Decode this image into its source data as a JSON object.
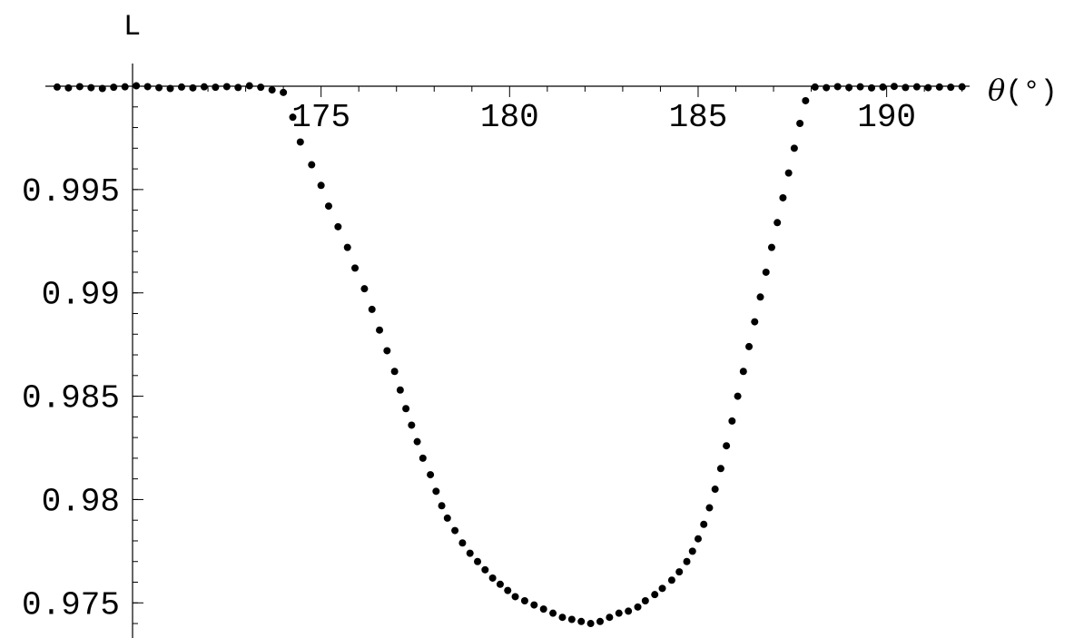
{
  "chart_data": {
    "type": "scatter",
    "title": "",
    "xlabel": "θ(°)",
    "xlabel_symbol": "θ",
    "xlabel_unit": "(°)",
    "ylabel": "L",
    "xlim": [
      170,
      192.2
    ],
    "ylim": [
      0.9733,
      1.0
    ],
    "grid": false,
    "legend": "none",
    "marker_color": "#000000",
    "xticks": [
      {
        "value": 175,
        "label": "175"
      },
      {
        "value": 180,
        "label": "180"
      },
      {
        "value": 185,
        "label": "185"
      },
      {
        "value": 190,
        "label": "190"
      }
    ],
    "yticks": [
      {
        "value": 0.995,
        "label": "0.995"
      },
      {
        "value": 0.99,
        "label": "0.99"
      },
      {
        "value": 0.985,
        "label": "0.985"
      },
      {
        "value": 0.98,
        "label": "0.98"
      },
      {
        "value": 0.975,
        "label": "0.975"
      }
    ],
    "series": [
      {
        "points": [
          [
            168,
            0.99996
          ],
          [
            168.3,
            0.99992
          ],
          [
            168.6,
            0.99998
          ],
          [
            168.9,
            0.99993
          ],
          [
            169.2,
            0.99989
          ],
          [
            169.5,
            0.99995
          ],
          [
            169.8,
            0.99997
          ],
          [
            170.1,
            1.00002
          ],
          [
            170.4,
            0.99998
          ],
          [
            170.7,
            0.99993
          ],
          [
            171.0,
            0.99989
          ],
          [
            171.3,
            0.99996
          ],
          [
            171.6,
            0.99992
          ],
          [
            171.9,
            0.99997
          ],
          [
            172.2,
            0.99995
          ],
          [
            172.5,
            0.99998
          ],
          [
            172.8,
            0.99994
          ],
          [
            173.1,
            1.00002
          ],
          [
            173.4,
            0.99995
          ],
          [
            173.7,
            0.99982
          ],
          [
            174.0,
            0.9997
          ],
          [
            174.25,
            0.9985
          ],
          [
            174.45,
            0.9973
          ],
          [
            174.75,
            0.9962
          ],
          [
            175.0,
            0.9952
          ],
          [
            175.2,
            0.9942
          ],
          [
            175.45,
            0.9932
          ],
          [
            175.7,
            0.9922
          ],
          [
            175.9,
            0.9912
          ],
          [
            176.15,
            0.9902
          ],
          [
            176.35,
            0.9892
          ],
          [
            176.55,
            0.9882
          ],
          [
            176.75,
            0.9872
          ],
          [
            176.95,
            0.9862
          ],
          [
            177.1,
            0.9853
          ],
          [
            177.25,
            0.9844
          ],
          [
            177.4,
            0.9836
          ],
          [
            177.55,
            0.9828
          ],
          [
            177.7,
            0.982
          ],
          [
            177.9,
            0.9812
          ],
          [
            178.05,
            0.9804
          ],
          [
            178.2,
            0.9797
          ],
          [
            178.35,
            0.9791
          ],
          [
            178.55,
            0.9785
          ],
          [
            178.75,
            0.9779
          ],
          [
            178.95,
            0.9774
          ],
          [
            179.15,
            0.977
          ],
          [
            179.35,
            0.9766
          ],
          [
            179.55,
            0.9762
          ],
          [
            179.75,
            0.9759
          ],
          [
            179.95,
            0.9756
          ],
          [
            180.15,
            0.9753
          ],
          [
            180.4,
            0.9751
          ],
          [
            180.65,
            0.9749
          ],
          [
            180.9,
            0.9747
          ],
          [
            181.15,
            0.9745
          ],
          [
            181.4,
            0.9743
          ],
          [
            181.65,
            0.9742
          ],
          [
            181.9,
            0.9741
          ],
          [
            182.15,
            0.974
          ],
          [
            182.4,
            0.9741
          ],
          [
            182.65,
            0.9743
          ],
          [
            182.9,
            0.9745
          ],
          [
            183.15,
            0.9746
          ],
          [
            183.4,
            0.9748
          ],
          [
            183.6,
            0.9751
          ],
          [
            183.85,
            0.9754
          ],
          [
            184.05,
            0.9757
          ],
          [
            184.3,
            0.9761
          ],
          [
            184.5,
            0.9765
          ],
          [
            184.7,
            0.977
          ],
          [
            184.85,
            0.9775
          ],
          [
            185.0,
            0.9781
          ],
          [
            185.15,
            0.9788
          ],
          [
            185.3,
            0.9796
          ],
          [
            185.45,
            0.9805
          ],
          [
            185.6,
            0.9815
          ],
          [
            185.75,
            0.9826
          ],
          [
            185.9,
            0.9838
          ],
          [
            186.05,
            0.985
          ],
          [
            186.2,
            0.9862
          ],
          [
            186.35,
            0.9874
          ],
          [
            186.5,
            0.9886
          ],
          [
            186.65,
            0.9898
          ],
          [
            186.8,
            0.991
          ],
          [
            186.95,
            0.9922
          ],
          [
            187.1,
            0.9934
          ],
          [
            187.25,
            0.9946
          ],
          [
            187.4,
            0.9958
          ],
          [
            187.55,
            0.997
          ],
          [
            187.7,
            0.9982
          ],
          [
            187.85,
            0.9993
          ],
          [
            188.1,
            0.99996
          ],
          [
            188.4,
            0.99993
          ],
          [
            188.7,
            0.99998
          ],
          [
            189.0,
            0.99994
          ],
          [
            189.3,
            0.99997
          ],
          [
            189.6,
            0.99992
          ],
          [
            189.9,
            0.99996
          ],
          [
            190.2,
            0.99999
          ],
          [
            190.5,
            0.99994
          ],
          [
            190.8,
            0.99997
          ],
          [
            191.1,
            0.99993
          ],
          [
            191.4,
            0.99996
          ],
          [
            191.7,
            0.99995
          ],
          [
            192.0,
            0.99997
          ]
        ]
      }
    ]
  }
}
